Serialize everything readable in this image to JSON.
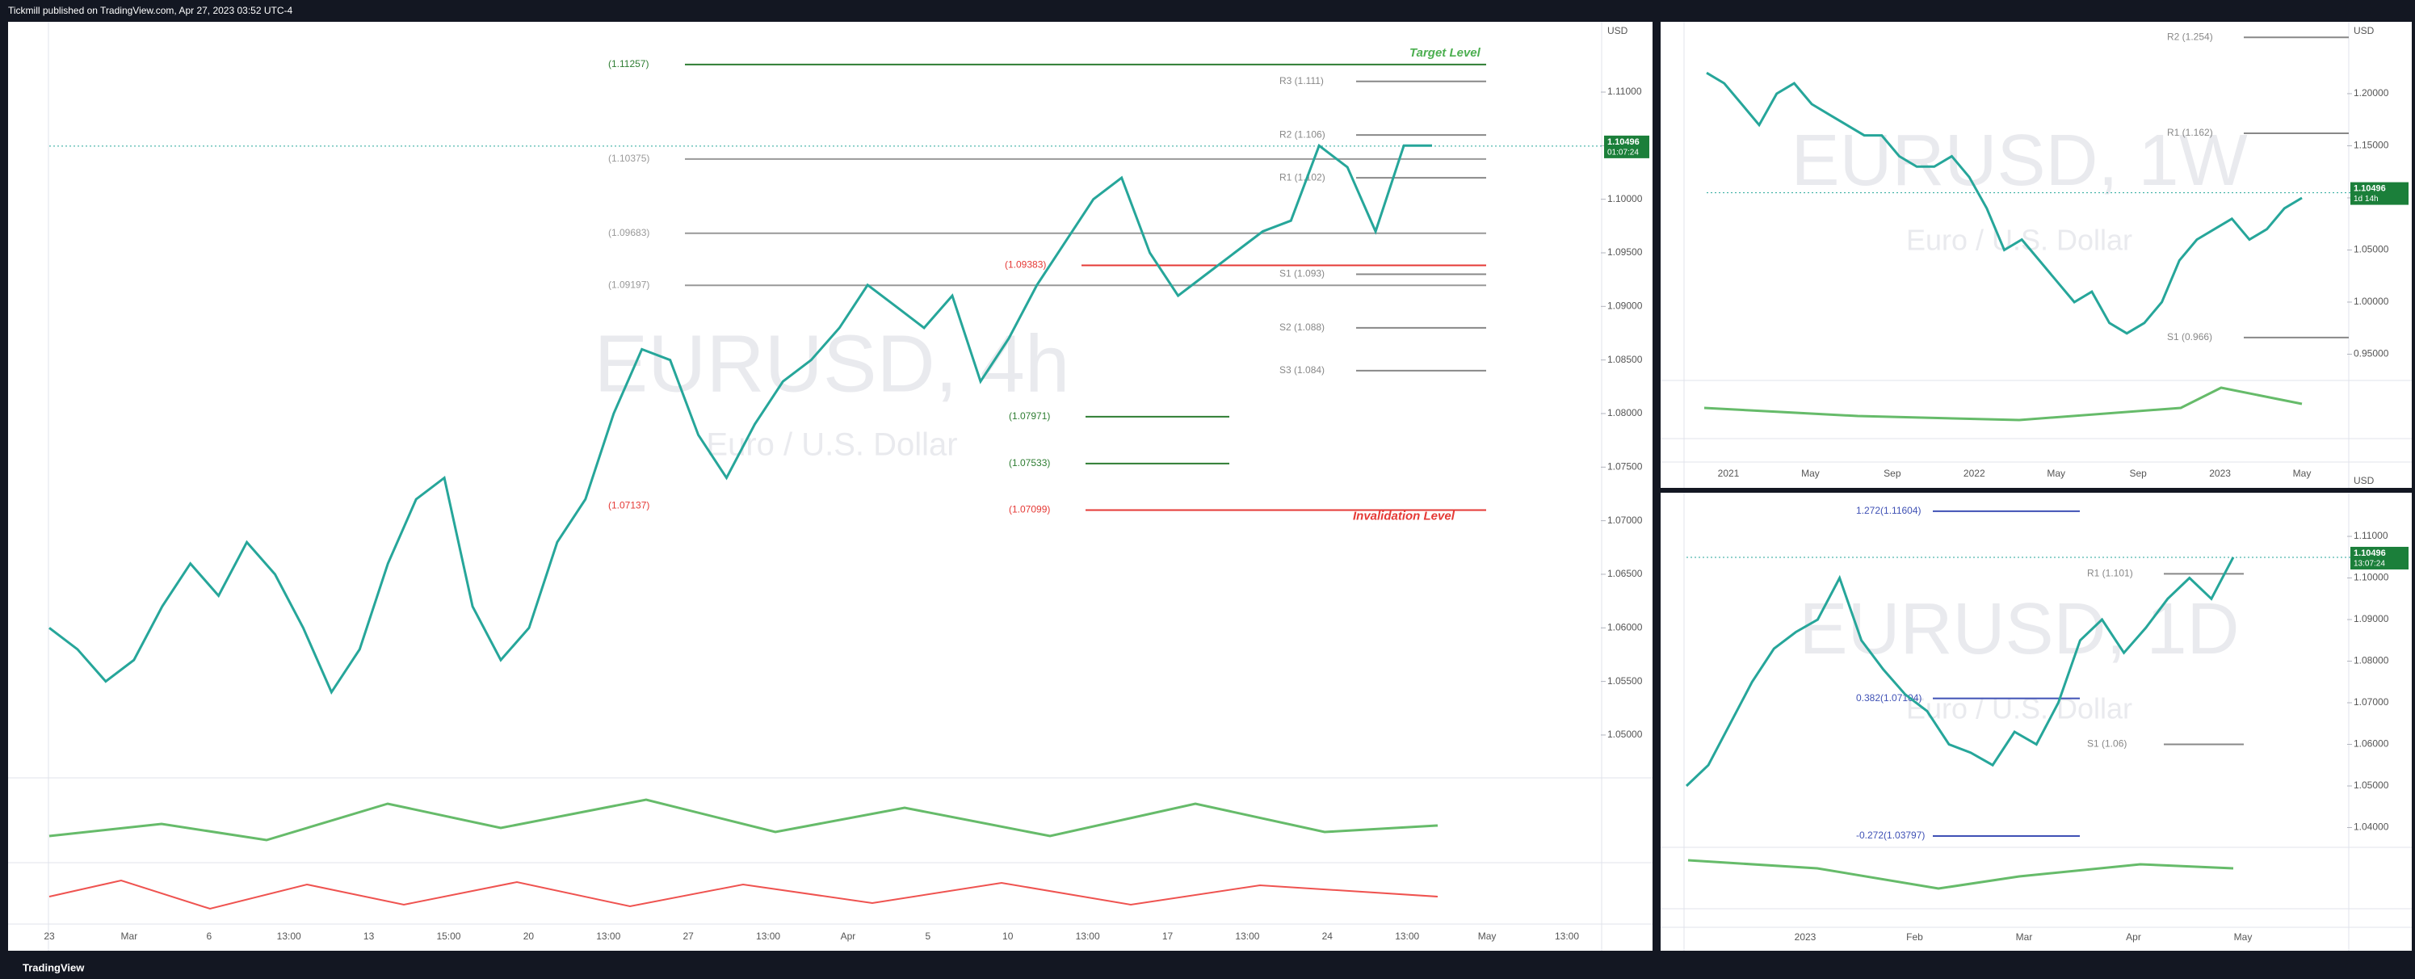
{
  "header": {
    "publisher": "Tickmill published on TradingView.com, Apr 27, 2023 03:52 UTC-4"
  },
  "footer": {
    "brand": "TradingView"
  },
  "main": {
    "type": "line",
    "watermark": "EURUSD, 4h",
    "subtitle": "Euro / U.S. Dollar",
    "currency": "USD",
    "ylim": [
      1.046,
      1.1146
    ],
    "yticks": [
      {
        "value": 1.11,
        "label": "1.11000"
      },
      {
        "value": 1.105,
        "label": "1.10500"
      },
      {
        "value": 1.1,
        "label": "1.10000"
      },
      {
        "value": 1.095,
        "label": "1.09500"
      },
      {
        "value": 1.09,
        "label": "1.09000"
      },
      {
        "value": 1.085,
        "label": "1.08500"
      },
      {
        "value": 1.08,
        "label": "1.08000"
      },
      {
        "value": 1.075,
        "label": "1.07500"
      },
      {
        "value": 1.07,
        "label": "1.07000"
      },
      {
        "value": 1.065,
        "label": "1.06500"
      },
      {
        "value": 1.06,
        "label": "1.06000"
      },
      {
        "value": 1.055,
        "label": "1.05500"
      },
      {
        "value": 1.05,
        "label": "1.05000"
      }
    ],
    "categories": [
      "23",
      "Mar",
      "6",
      "13:00",
      "13",
      "15:00",
      "20",
      "13:00",
      "27",
      "13:00",
      "Apr",
      "5",
      "10",
      "13:00",
      "17",
      "13:00",
      "24",
      "13:00",
      "May",
      "13:00"
    ],
    "levels": [
      {
        "value": 1.11257,
        "label": "(1.11257)",
        "color": "#2e7d32"
      },
      {
        "value": 1.111,
        "label": "R3 (1.111)",
        "color": "#888888"
      },
      {
        "value": 1.106,
        "label": "R2 (1.106)",
        "color": "#888888"
      },
      {
        "value": 1.10375,
        "label": "(1.10375)",
        "color": "#999999"
      },
      {
        "value": 1.102,
        "label": "R1 (1.102)",
        "color": "#888888"
      },
      {
        "value": 1.09683,
        "label": "(1.09683)",
        "color": "#999999"
      },
      {
        "value": 1.09383,
        "label": "(1.09383)",
        "color": "#e53935"
      },
      {
        "value": 1.09197,
        "label": "(1.09197)",
        "color": "#999999"
      },
      {
        "value": 1.093,
        "label": "S1 (1.093)",
        "color": "#888888"
      },
      {
        "value": 1.088,
        "label": "S2 (1.088)",
        "color": "#888888"
      },
      {
        "value": 1.084,
        "label": "S3 (1.084)",
        "color": "#888888"
      },
      {
        "value": 1.07971,
        "label": "(1.07971)",
        "color": "#2e7d32"
      },
      {
        "value": 1.07533,
        "label": "(1.07533)",
        "color": "#2e7d32"
      },
      {
        "value": 1.07099,
        "label": "(1.07099)",
        "color": "#e53935"
      },
      {
        "value": 1.07137,
        "label": "(1.07137)",
        "color": "#e53935"
      }
    ],
    "target": "Target Level",
    "invalidation": "Invalidation Level",
    "last_price": {
      "value": 1.10496,
      "label": "1.10496",
      "countdown": "01:07:24"
    },
    "color": "#26a69a",
    "closes": [
      1.06,
      1.058,
      1.055,
      1.057,
      1.062,
      1.066,
      1.063,
      1.068,
      1.065,
      1.06,
      1.054,
      1.058,
      1.066,
      1.072,
      1.074,
      1.062,
      1.057,
      1.06,
      1.068,
      1.072,
      1.08,
      1.086,
      1.085,
      1.078,
      1.074,
      1.079,
      1.083,
      1.085,
      1.088,
      1.092,
      1.09,
      1.088,
      1.091,
      1.083,
      1.087,
      1.092,
      1.096,
      1.1,
      1.102,
      1.095,
      1.091,
      1.093,
      1.095,
      1.097,
      1.098,
      1.105,
      1.103,
      1.097,
      1.105,
      1.105
    ]
  },
  "weekly": {
    "type": "line",
    "watermark": "EURUSD, 1W",
    "subtitle": "Euro / U.S. Dollar",
    "currency": "USD",
    "ylim": [
      0.9248,
      1.2674
    ],
    "yticks": [
      {
        "value": 1.2,
        "label": "1.20000"
      },
      {
        "value": 1.15,
        "label": "1.15000"
      },
      {
        "value": 1.1,
        "label": "1.10000"
      },
      {
        "value": 1.05,
        "label": "1.05000"
      },
      {
        "value": 1.0,
        "label": "1.00000"
      },
      {
        "value": 0.95,
        "label": "0.95000"
      }
    ],
    "categories": [
      "2021",
      "May",
      "Sep",
      "2022",
      "May",
      "Sep",
      "2023",
      "May"
    ],
    "levels": [
      {
        "value": 1.254,
        "label": "R2 (1.254)",
        "color": "#888888"
      },
      {
        "value": 1.162,
        "label": "R1 (1.162)",
        "color": "#888888"
      },
      {
        "value": 0.966,
        "label": "S1 (0.966)",
        "color": "#888888"
      }
    ],
    "last_price": {
      "value": 1.10496,
      "label": "1.10496",
      "countdown": "1d 14h"
    },
    "color": "#26a69a",
    "closes": [
      1.22,
      1.21,
      1.19,
      1.17,
      1.2,
      1.21,
      1.19,
      1.18,
      1.17,
      1.16,
      1.16,
      1.14,
      1.13,
      1.13,
      1.14,
      1.12,
      1.09,
      1.05,
      1.06,
      1.04,
      1.02,
      1.0,
      1.01,
      0.98,
      0.97,
      0.98,
      1.0,
      1.04,
      1.06,
      1.07,
      1.08,
      1.06,
      1.07,
      1.09,
      1.1
    ]
  },
  "daily": {
    "type": "line",
    "watermark": "EURUSD, 1D",
    "subtitle": "Euro / U.S. Dollar",
    "currency": "USD",
    "ylim": [
      1.03524,
      1.12049
    ],
    "yticks": [
      {
        "value": 1.11,
        "label": "1.11000"
      },
      {
        "value": 1.1,
        "label": "1.10000"
      },
      {
        "value": 1.09,
        "label": "1.09000"
      },
      {
        "value": 1.08,
        "label": "1.08000"
      },
      {
        "value": 1.07,
        "label": "1.07000"
      },
      {
        "value": 1.06,
        "label": "1.06000"
      },
      {
        "value": 1.05,
        "label": "1.05000"
      },
      {
        "value": 1.04,
        "label": "1.04000"
      }
    ],
    "categories": [
      "2023",
      "Feb",
      "Mar",
      "Apr",
      "May"
    ],
    "levels": [
      {
        "value": 1.11604,
        "label": "1.272(1.11604)",
        "color": "#3f51b5"
      },
      {
        "value": 1.101,
        "label": "R1 (1.101)",
        "color": "#888888"
      },
      {
        "value": 1.07104,
        "label": "0.382(1.07104)",
        "color": "#3f51b5"
      },
      {
        "value": 1.06,
        "label": "S1 (1.06)",
        "color": "#888888"
      },
      {
        "value": 1.03797,
        "label": "-0.272(1.03797)",
        "color": "#3f51b5"
      }
    ],
    "last_price": {
      "value": 1.10496,
      "label": "1.10496",
      "countdown": "13:07:24"
    },
    "color": "#26a69a",
    "closes": [
      1.05,
      1.055,
      1.065,
      1.075,
      1.083,
      1.087,
      1.09,
      1.1,
      1.085,
      1.078,
      1.072,
      1.068,
      1.06,
      1.058,
      1.055,
      1.063,
      1.06,
      1.07,
      1.085,
      1.09,
      1.082,
      1.088,
      1.095,
      1.1,
      1.095,
      1.105
    ]
  }
}
